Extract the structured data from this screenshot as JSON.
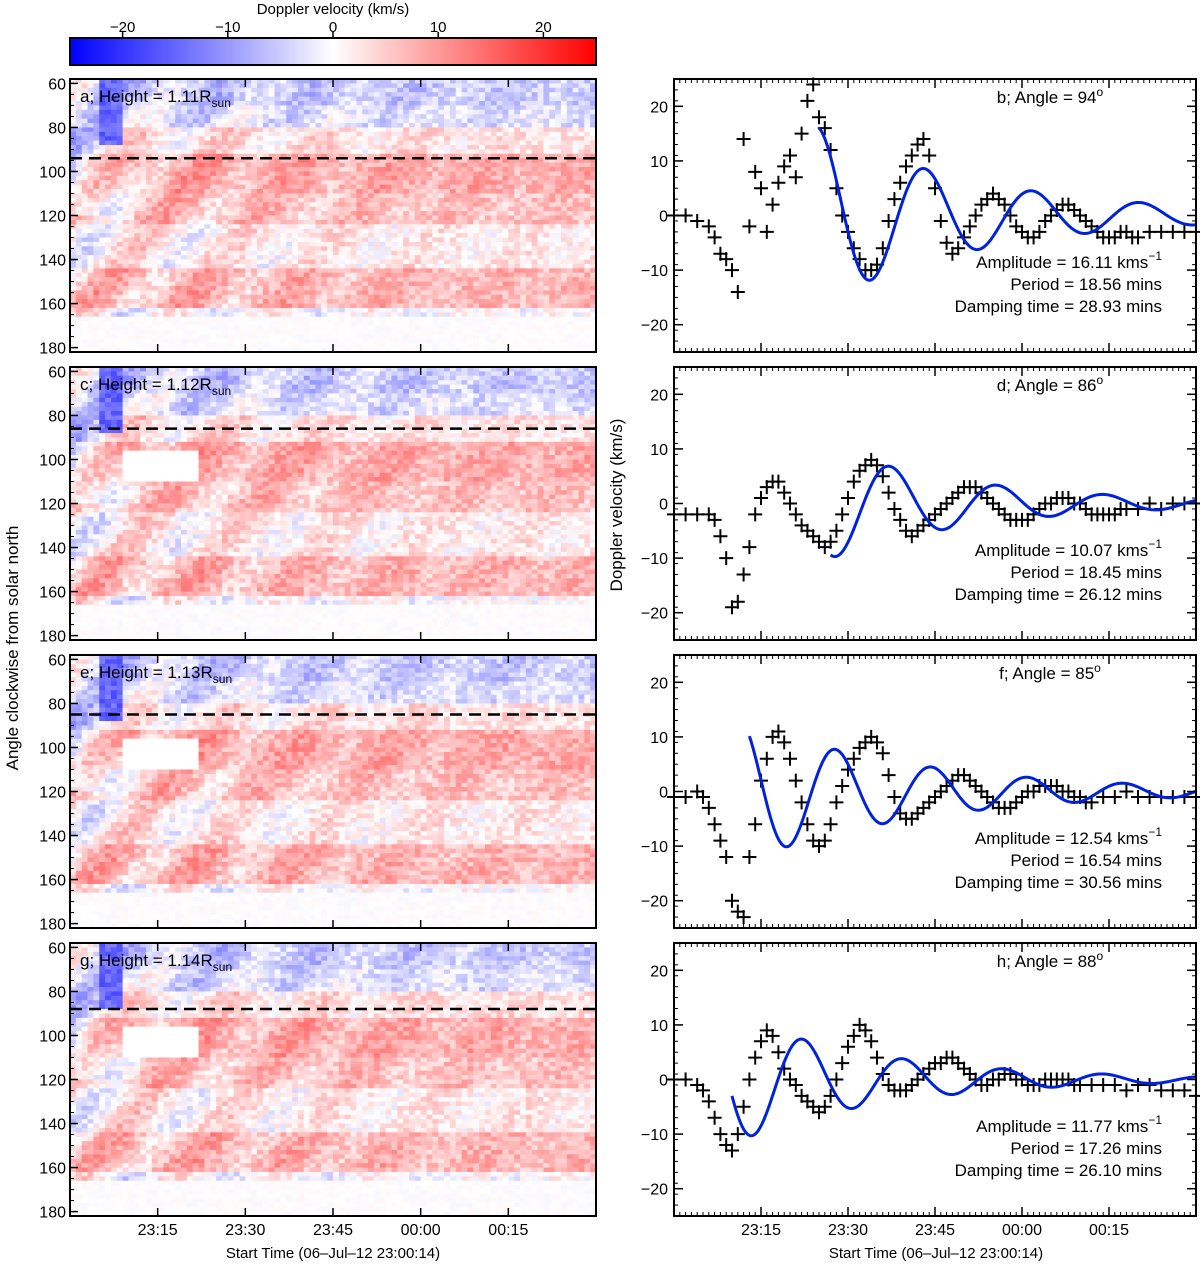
{
  "colorbar": {
    "title": "Doppler velocity (km/s)",
    "range": [
      -25,
      25
    ],
    "ticks": [
      -20,
      -10,
      0,
      10,
      20
    ],
    "tick_labels": [
      "−20",
      "−10",
      "0",
      "10",
      "20"
    ],
    "colors": {
      "negative": "#0000ff",
      "zero": "#ffffff",
      "positive": "#ff0000"
    }
  },
  "left_axis": {
    "ylabel": "Angle clockwise from solar north",
    "yticks": [
      60,
      80,
      100,
      120,
      140,
      160,
      180
    ]
  },
  "right_axis": {
    "ylabel": "Doppler velocity (km/s)",
    "yticks": [
      20,
      10,
      0,
      -10,
      -20
    ],
    "ytick_labels": [
      "20",
      "10",
      "0",
      "−10",
      "−20"
    ]
  },
  "xaxis": {
    "tick_labels": [
      "23:15",
      "23:30",
      "23:45",
      "00:00",
      "00:15"
    ],
    "tick_minutes": [
      15,
      30,
      45,
      60,
      75
    ],
    "xlabel": "Start Time (06–Jul–12 23:00:14)"
  },
  "chart_data": [
    {
      "type": "heatmap",
      "panel": "a",
      "label_main": "a; Height = 1.11R",
      "label_sub": "sun",
      "dashed_angle": 94,
      "x_range_min": [
        0,
        90
      ],
      "y_range_deg": [
        58,
        182
      ]
    },
    {
      "type": "heatmap",
      "panel": "c",
      "label_main": "c; Height = 1.12R",
      "label_sub": "sun",
      "dashed_angle": 86,
      "x_range_min": [
        0,
        90
      ],
      "y_range_deg": [
        58,
        182
      ]
    },
    {
      "type": "heatmap",
      "panel": "e",
      "label_main": "e; Height = 1.13R",
      "label_sub": "sun",
      "dashed_angle": 85,
      "x_range_min": [
        0,
        90
      ],
      "y_range_deg": [
        58,
        182
      ]
    },
    {
      "type": "heatmap",
      "panel": "g",
      "label_main": "g; Height = 1.14R",
      "label_sub": "sun",
      "dashed_angle": 88,
      "x_range_min": [
        0,
        90
      ],
      "y_range_deg": [
        58,
        182
      ]
    },
    {
      "type": "scatter",
      "panel": "b",
      "title": "b; Angle = 94",
      "deg": "o",
      "amp_text": "Amplitude = 16.11 kms",
      "exp": "−1",
      "period_text": "Period = 18.56 mins",
      "damp_text": "Damping time = 28.93 mins",
      "amplitude": 16.11,
      "period": 18.56,
      "damping": 28.93,
      "fit_start": 25,
      "phase": 1.67,
      "x_range_min": [
        0,
        90
      ],
      "ylim": [
        -25,
        25
      ],
      "observed": [
        [
          0,
          0
        ],
        [
          2,
          0
        ],
        [
          4,
          -1
        ],
        [
          6,
          -2
        ],
        [
          7,
          -4
        ],
        [
          8,
          -7
        ],
        [
          9,
          -8
        ],
        [
          10,
          -10
        ],
        [
          11,
          -14
        ],
        [
          12,
          14
        ],
        [
          13,
          -2
        ],
        [
          14,
          8
        ],
        [
          15,
          5
        ],
        [
          16,
          -3
        ],
        [
          17,
          2
        ],
        [
          18,
          6
        ],
        [
          19,
          9
        ],
        [
          20,
          11
        ],
        [
          21,
          7
        ],
        [
          22,
          15
        ],
        [
          23,
          21
        ],
        [
          24,
          24
        ],
        [
          25,
          18
        ],
        [
          26,
          16
        ],
        [
          27,
          12
        ],
        [
          28,
          5
        ],
        [
          29,
          0
        ],
        [
          30,
          -3
        ],
        [
          31,
          -6
        ],
        [
          32,
          -8
        ],
        [
          33,
          -10
        ],
        [
          34,
          -10
        ],
        [
          35,
          -9
        ],
        [
          36,
          -6
        ],
        [
          37,
          -1
        ],
        [
          38,
          3
        ],
        [
          39,
          6
        ],
        [
          40,
          9
        ],
        [
          41,
          11
        ],
        [
          42,
          13
        ],
        [
          43,
          14
        ],
        [
          44,
          11
        ],
        [
          45,
          5
        ],
        [
          46,
          -1
        ],
        [
          47,
          -5
        ],
        [
          48,
          -7
        ],
        [
          49,
          -6
        ],
        [
          50,
          -4
        ],
        [
          51,
          -2
        ],
        [
          52,
          0
        ],
        [
          53,
          2
        ],
        [
          54,
          3
        ],
        [
          55,
          4
        ],
        [
          56,
          3
        ],
        [
          57,
          2
        ],
        [
          58,
          0
        ],
        [
          59,
          -2
        ],
        [
          60,
          -3
        ],
        [
          61,
          -4
        ],
        [
          62,
          -4
        ],
        [
          63,
          -3
        ],
        [
          64,
          -1
        ],
        [
          65,
          0
        ],
        [
          66,
          1
        ],
        [
          67,
          2
        ],
        [
          68,
          2
        ],
        [
          69,
          1
        ],
        [
          70,
          0
        ],
        [
          71,
          -1
        ],
        [
          72,
          -2
        ],
        [
          73,
          -3
        ],
        [
          74,
          -4
        ],
        [
          75,
          -4
        ],
        [
          76,
          -4
        ],
        [
          77,
          -3
        ],
        [
          78,
          -3
        ],
        [
          79,
          -4
        ],
        [
          80,
          -4
        ],
        [
          82,
          -3
        ],
        [
          84,
          -3
        ],
        [
          86,
          -3
        ],
        [
          88,
          -3
        ],
        [
          90,
          -3
        ]
      ]
    },
    {
      "type": "scatter",
      "panel": "d",
      "title": "d; Angle = 86",
      "deg": "o",
      "amp_text": "Amplitude = 10.07 kms",
      "exp": "−1",
      "period_text": "Period = 18.45 mins",
      "damp_text": "Damping time = 26.12 mins",
      "amplitude": 10.07,
      "period": 18.45,
      "damping": 26.12,
      "fit_start": 27,
      "phase": 4.35,
      "x_range_min": [
        0,
        90
      ],
      "ylim": [
        -25,
        25
      ],
      "observed": [
        [
          0,
          -2
        ],
        [
          2,
          -2
        ],
        [
          4,
          -2
        ],
        [
          6,
          -2
        ],
        [
          7,
          -3
        ],
        [
          8,
          -6
        ],
        [
          9,
          -10
        ],
        [
          10,
          -19
        ],
        [
          11,
          -18
        ],
        [
          12,
          -13
        ],
        [
          13,
          -8
        ],
        [
          14,
          -2
        ],
        [
          15,
          1
        ],
        [
          16,
          3
        ],
        [
          17,
          4
        ],
        [
          18,
          4
        ],
        [
          19,
          2
        ],
        [
          20,
          0
        ],
        [
          21,
          -2
        ],
        [
          22,
          -4
        ],
        [
          23,
          -5
        ],
        [
          24,
          -6
        ],
        [
          25,
          -7
        ],
        [
          26,
          -8
        ],
        [
          27,
          -7
        ],
        [
          28,
          -5
        ],
        [
          29,
          -2
        ],
        [
          30,
          1
        ],
        [
          31,
          4
        ],
        [
          32,
          6
        ],
        [
          33,
          7
        ],
        [
          34,
          8
        ],
        [
          35,
          7
        ],
        [
          36,
          5
        ],
        [
          37,
          2
        ],
        [
          38,
          -1
        ],
        [
          39,
          -3
        ],
        [
          40,
          -5
        ],
        [
          41,
          -6
        ],
        [
          42,
          -5
        ],
        [
          43,
          -4
        ],
        [
          44,
          -3
        ],
        [
          45,
          -2
        ],
        [
          46,
          -1
        ],
        [
          47,
          0
        ],
        [
          48,
          1
        ],
        [
          49,
          2
        ],
        [
          50,
          3
        ],
        [
          51,
          3
        ],
        [
          52,
          3
        ],
        [
          53,
          2
        ],
        [
          54,
          1
        ],
        [
          55,
          0
        ],
        [
          56,
          -1
        ],
        [
          57,
          -2
        ],
        [
          58,
          -3
        ],
        [
          59,
          -3
        ],
        [
          60,
          -3
        ],
        [
          61,
          -3
        ],
        [
          62,
          -2
        ],
        [
          63,
          -1
        ],
        [
          64,
          0
        ],
        [
          65,
          0
        ],
        [
          66,
          1
        ],
        [
          67,
          1
        ],
        [
          68,
          1
        ],
        [
          69,
          0
        ],
        [
          70,
          0
        ],
        [
          71,
          -1
        ],
        [
          72,
          -2
        ],
        [
          73,
          -2
        ],
        [
          74,
          -2
        ],
        [
          75,
          -2
        ],
        [
          76,
          -2
        ],
        [
          77,
          -1
        ],
        [
          78,
          -1
        ],
        [
          80,
          -1
        ],
        [
          82,
          0
        ],
        [
          84,
          -1
        ],
        [
          86,
          0
        ],
        [
          88,
          0
        ],
        [
          90,
          0
        ]
      ]
    },
    {
      "type": "scatter",
      "panel": "f",
      "title": "f; Angle = 85",
      "deg": "o",
      "amp_text": "Amplitude = 12.54 kms",
      "exp": "−1",
      "period_text": "Period = 16.54 mins",
      "damp_text": "Damping time = 30.56 mins",
      "amplitude": 12.54,
      "period": 16.54,
      "damping": 30.56,
      "fit_start": 13,
      "phase": 2.2,
      "x_range_min": [
        0,
        90
      ],
      "ylim": [
        -25,
        25
      ],
      "observed": [
        [
          0,
          -1
        ],
        [
          2,
          -1
        ],
        [
          4,
          0
        ],
        [
          5,
          -1
        ],
        [
          6,
          -3
        ],
        [
          7,
          -6
        ],
        [
          8,
          -9
        ],
        [
          9,
          -12
        ],
        [
          10,
          -20
        ],
        [
          11,
          -22
        ],
        [
          12,
          -23
        ],
        [
          13,
          -12
        ],
        [
          14,
          -6
        ],
        [
          15,
          2
        ],
        [
          16,
          6
        ],
        [
          17,
          10
        ],
        [
          18,
          11
        ],
        [
          19,
          9
        ],
        [
          20,
          6
        ],
        [
          21,
          2
        ],
        [
          22,
          -2
        ],
        [
          23,
          -6
        ],
        [
          24,
          -9
        ],
        [
          25,
          -10
        ],
        [
          26,
          -9
        ],
        [
          27,
          -6
        ],
        [
          28,
          -2
        ],
        [
          29,
          1
        ],
        [
          30,
          4
        ],
        [
          31,
          6
        ],
        [
          32,
          8
        ],
        [
          33,
          9
        ],
        [
          34,
          10
        ],
        [
          35,
          9
        ],
        [
          36,
          7
        ],
        [
          37,
          3
        ],
        [
          38,
          -1
        ],
        [
          39,
          -4
        ],
        [
          40,
          -5
        ],
        [
          41,
          -5
        ],
        [
          42,
          -4
        ],
        [
          43,
          -3
        ],
        [
          44,
          -2
        ],
        [
          45,
          -1
        ],
        [
          46,
          0
        ],
        [
          47,
          1
        ],
        [
          48,
          2
        ],
        [
          49,
          3
        ],
        [
          50,
          3
        ],
        [
          51,
          2
        ],
        [
          52,
          1
        ],
        [
          53,
          0
        ],
        [
          54,
          -1
        ],
        [
          55,
          -2
        ],
        [
          56,
          -3
        ],
        [
          57,
          -3
        ],
        [
          58,
          -3
        ],
        [
          59,
          -2
        ],
        [
          60,
          -1
        ],
        [
          61,
          0
        ],
        [
          62,
          0
        ],
        [
          63,
          1
        ],
        [
          64,
          1
        ],
        [
          65,
          1
        ],
        [
          66,
          1
        ],
        [
          67,
          0
        ],
        [
          68,
          0
        ],
        [
          69,
          -1
        ],
        [
          70,
          -1
        ],
        [
          71,
          -2
        ],
        [
          72,
          -2
        ],
        [
          74,
          -1
        ],
        [
          76,
          -1
        ],
        [
          78,
          0
        ],
        [
          80,
          -1
        ],
        [
          82,
          -1
        ],
        [
          84,
          -1
        ],
        [
          86,
          -1
        ],
        [
          88,
          -1
        ],
        [
          90,
          -1
        ]
      ]
    },
    {
      "type": "scatter",
      "panel": "h",
      "title": "h; Angle = 88",
      "deg": "o",
      "amp_text": "Amplitude = 11.77 kms",
      "exp": "−1",
      "period_text": "Period = 17.26 mins",
      "damp_text": "Damping time = 26.10 mins",
      "amplitude": 11.77,
      "period": 17.26,
      "damping": 26.1,
      "fit_start": 10,
      "phase": 3.4,
      "x_range_min": [
        0,
        90
      ],
      "ylim": [
        -25,
        25
      ],
      "observed": [
        [
          0,
          0
        ],
        [
          2,
          0
        ],
        [
          4,
          -1
        ],
        [
          5,
          -2
        ],
        [
          6,
          -4
        ],
        [
          7,
          -7
        ],
        [
          8,
          -10
        ],
        [
          9,
          -12
        ],
        [
          10,
          -13
        ],
        [
          11,
          -10
        ],
        [
          12,
          -5
        ],
        [
          13,
          0
        ],
        [
          14,
          4
        ],
        [
          15,
          7
        ],
        [
          16,
          9
        ],
        [
          17,
          8
        ],
        [
          18,
          5
        ],
        [
          19,
          2
        ],
        [
          20,
          0
        ],
        [
          21,
          -1
        ],
        [
          22,
          -3
        ],
        [
          23,
          -4
        ],
        [
          24,
          -5
        ],
        [
          25,
          -6
        ],
        [
          26,
          -5
        ],
        [
          27,
          -3
        ],
        [
          28,
          0
        ],
        [
          29,
          3
        ],
        [
          30,
          6
        ],
        [
          31,
          8
        ],
        [
          32,
          10
        ],
        [
          33,
          9
        ],
        [
          34,
          7
        ],
        [
          35,
          4
        ],
        [
          36,
          1
        ],
        [
          37,
          -1
        ],
        [
          38,
          -2
        ],
        [
          39,
          -2
        ],
        [
          40,
          -2
        ],
        [
          41,
          -1
        ],
        [
          42,
          0
        ],
        [
          43,
          1
        ],
        [
          44,
          2
        ],
        [
          45,
          3
        ],
        [
          46,
          3
        ],
        [
          47,
          4
        ],
        [
          48,
          4
        ],
        [
          49,
          3
        ],
        [
          50,
          2
        ],
        [
          51,
          1
        ],
        [
          52,
          0
        ],
        [
          53,
          -1
        ],
        [
          54,
          -1
        ],
        [
          55,
          0
        ],
        [
          56,
          0
        ],
        [
          57,
          1
        ],
        [
          58,
          1
        ],
        [
          59,
          0
        ],
        [
          60,
          0
        ],
        [
          61,
          -1
        ],
        [
          62,
          -1
        ],
        [
          63,
          -1
        ],
        [
          64,
          0
        ],
        [
          65,
          0
        ],
        [
          66,
          0
        ],
        [
          67,
          0
        ],
        [
          68,
          0
        ],
        [
          69,
          -1
        ],
        [
          70,
          -1
        ],
        [
          72,
          -1
        ],
        [
          74,
          -1
        ],
        [
          76,
          -1
        ],
        [
          78,
          -2
        ],
        [
          80,
          -1
        ],
        [
          82,
          -1
        ],
        [
          84,
          -2
        ],
        [
          86,
          -2
        ],
        [
          88,
          -2
        ],
        [
          90,
          -3
        ]
      ]
    }
  ]
}
